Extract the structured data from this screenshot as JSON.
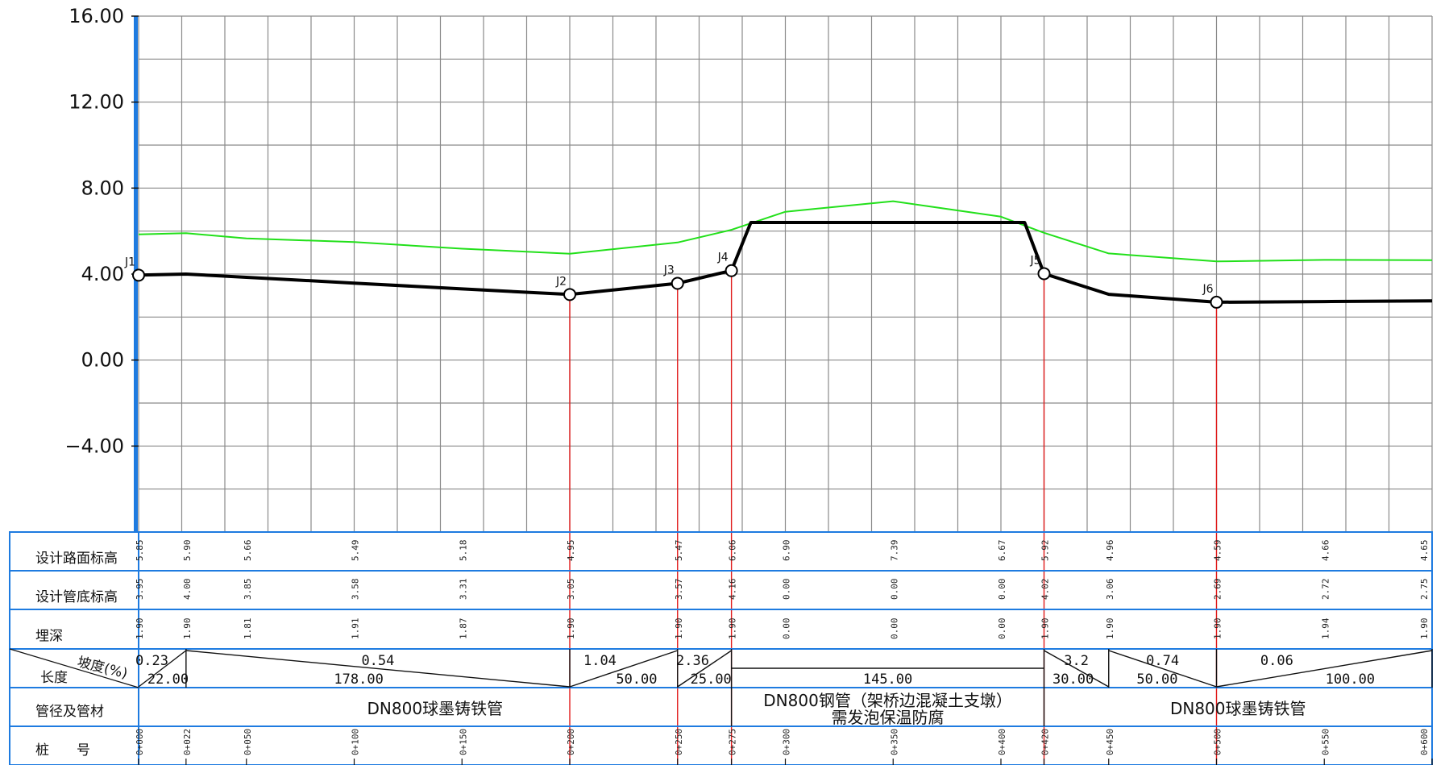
{
  "colors": {
    "grid": "#8a8a8a",
    "table_border": "#1e7be0",
    "axis_bar": "#1e7be0",
    "ground_line": "#22e01a",
    "pipe_line": "#000000",
    "node_line": "#e01a1a"
  },
  "chart_data": {
    "type": "line",
    "title": "",
    "xlabel": "",
    "ylabel": "",
    "xlim": [
      0,
      600
    ],
    "ylim": [
      -8,
      16
    ],
    "yticks": [
      "16.00",
      "12.00",
      "8.00",
      "4.00",
      "0.00",
      "−4.00"
    ],
    "ytick_values": [
      16,
      12,
      8,
      4,
      0,
      -4
    ],
    "grid": true,
    "series": [
      {
        "key": "ground",
        "points": [
          [
            0,
            5.85
          ],
          [
            22,
            5.9
          ],
          [
            50,
            5.66
          ],
          [
            100,
            5.49
          ],
          [
            150,
            5.18
          ],
          [
            200,
            4.95
          ],
          [
            250,
            5.47
          ],
          [
            275,
            6.06
          ],
          [
            300,
            6.9
          ],
          [
            350,
            7.39
          ],
          [
            400,
            6.67
          ],
          [
            420,
            5.92
          ],
          [
            450,
            4.96
          ],
          [
            500,
            4.59
          ],
          [
            550,
            4.66
          ],
          [
            600,
            4.65
          ]
        ]
      },
      {
        "key": "pipe",
        "points": [
          [
            0,
            3.95
          ],
          [
            22,
            4.0
          ],
          [
            50,
            3.85
          ],
          [
            100,
            3.58
          ],
          [
            150,
            3.31
          ],
          [
            200,
            3.05
          ],
          [
            250,
            3.57
          ],
          [
            275,
            4.16
          ],
          [
            284,
            6.4
          ],
          [
            411,
            6.4
          ],
          [
            420,
            4.02
          ],
          [
            450,
            3.06
          ],
          [
            500,
            2.69
          ],
          [
            550,
            2.72
          ],
          [
            600,
            2.75
          ]
        ]
      }
    ],
    "nodes": [
      {
        "label": "J1",
        "x": 0,
        "y": 3.95
      },
      {
        "label": "J2",
        "x": 200,
        "y": 3.05
      },
      {
        "label": "J3",
        "x": 250,
        "y": 3.57
      },
      {
        "label": "J4",
        "x": 275,
        "y": 4.16
      },
      {
        "label": "J5",
        "x": 420,
        "y": 4.02
      },
      {
        "label": "J6",
        "x": 500,
        "y": 2.69
      }
    ],
    "red_lines_at": [
      200,
      250,
      275,
      420,
      500
    ]
  },
  "table": {
    "row_labels": [
      "设计路面标高",
      "设计管底标高",
      "埋深",
      "坡度(%)",
      "长度",
      "管径及管材",
      "桩　　号"
    ],
    "stations": [
      0,
      22,
      50,
      100,
      150,
      200,
      250,
      275,
      300,
      350,
      400,
      420,
      450,
      500,
      550,
      600
    ],
    "road": [
      "5.85",
      "5.90",
      "5.66",
      "5.49",
      "5.18",
      "4.95",
      "5.47",
      "6.06",
      "6.90",
      "7.39",
      "6.67",
      "5.92",
      "4.96",
      "4.59",
      "4.66",
      "4.65"
    ],
    "invert": [
      "3.95",
      "4.00",
      "3.85",
      "3.58",
      "3.31",
      "3.05",
      "3.57",
      "4.16",
      "0.00",
      "0.00",
      "0.00",
      "4.02",
      "3.06",
      "2.69",
      "2.72",
      "2.75"
    ],
    "depth": [
      "1.90",
      "1.90",
      "1.81",
      "1.91",
      "1.87",
      "1.90",
      "1.90",
      "1.90",
      "0.00",
      "0.00",
      "0.00",
      "1.90",
      "1.90",
      "1.90",
      "1.94",
      "1.90"
    ],
    "chainage": [
      "0+000",
      "0+022",
      "0+050",
      "0+100",
      "0+150",
      "0+200",
      "0+250",
      "0+275",
      "0+300",
      "0+350",
      "0+400",
      "0+420",
      "0+450",
      "0+500",
      "0+550",
      "0+600"
    ],
    "slopes": [
      {
        "from": 0,
        "to": 22,
        "slope": "0.23",
        "length": "22.00",
        "dir": "up"
      },
      {
        "from": 22,
        "to": 200,
        "slope": "0.54",
        "length": "178.00",
        "dir": "down"
      },
      {
        "from": 200,
        "to": 250,
        "slope": "1.04",
        "length": "50.00",
        "dir": "up"
      },
      {
        "from": 250,
        "to": 275,
        "slope": "2.36",
        "length": "25.00",
        "dir": "up"
      },
      {
        "from": 275,
        "to": 420,
        "slope": "",
        "length": "145.00",
        "dir": "flat"
      },
      {
        "from": 420,
        "to": 450,
        "slope": "3.2",
        "length": "30.00",
        "dir": "down"
      },
      {
        "from": 450,
        "to": 500,
        "slope": "0.74",
        "length": "50.00",
        "dir": "down"
      },
      {
        "from": 500,
        "to": 600,
        "slope": "0.06",
        "length": "100.00",
        "dir": "up"
      }
    ],
    "materials": [
      {
        "from": 0,
        "to": 275,
        "lines": [
          "DN800球墨铸铁管"
        ]
      },
      {
        "from": 275,
        "to": 420,
        "lines": [
          "DN800钢管（架桥边混凝土支墩）",
          "需发泡保温防腐"
        ]
      },
      {
        "from": 420,
        "to": 600,
        "lines": [
          "DN800球墨铸铁管"
        ]
      }
    ]
  }
}
